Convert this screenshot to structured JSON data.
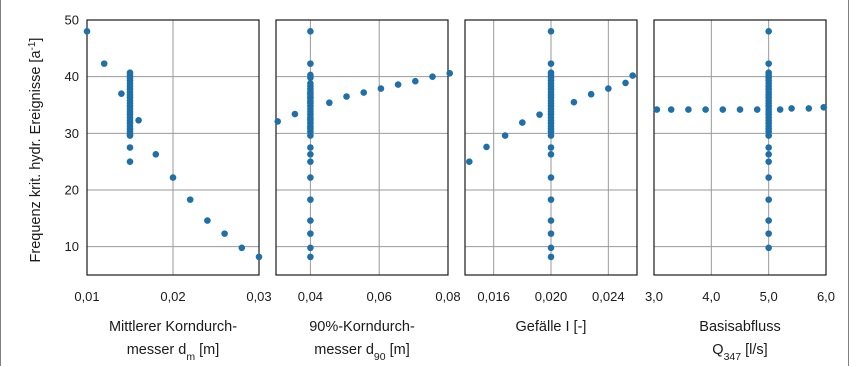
{
  "y_axis": {
    "label": "Frequenz krit. hydr. Ereignisse [a",
    "label_sup": "-1",
    "label_end": "]"
  },
  "chart_data": [
    {
      "type": "scatter",
      "xlabel_lines": [
        {
          "text": "Mittlerer Korndurch-"
        },
        {
          "text": "messer d",
          "sub": "m",
          "after": " [m]"
        }
      ],
      "xlim": [
        0.01,
        0.03
      ],
      "xticks": [
        0.01,
        0.02,
        0.03
      ],
      "xtick_labels": [
        "0,01",
        "0,02",
        "0,03"
      ],
      "ylim": [
        5,
        50
      ],
      "yticks": [
        10,
        20,
        30,
        40,
        50
      ],
      "ytick_labels": [
        "10",
        "20",
        "30",
        "40",
        "50"
      ],
      "grid": true,
      "color": "#1f6fa8",
      "x": [
        0.01,
        0.012,
        0.014,
        0.015,
        0.015,
        0.015,
        0.015,
        0.015,
        0.015,
        0.015,
        0.015,
        0.015,
        0.015,
        0.015,
        0.015,
        0.015,
        0.015,
        0.015,
        0.015,
        0.015,
        0.015,
        0.015,
        0.015,
        0.015,
        0.015,
        0.015,
        0.016,
        0.015,
        0.015,
        0.015,
        0.018,
        0.02,
        0.022,
        0.024,
        0.026,
        0.028,
        0.03
      ],
      "y": [
        48,
        42.3,
        37,
        40.7,
        40.3,
        39.8,
        39.3,
        38.8,
        38.3,
        37.8,
        37.3,
        36.8,
        36.3,
        35.8,
        35.3,
        34.8,
        34.3,
        33.8,
        33.3,
        32.8,
        32.3,
        31.8,
        31.3,
        30.8,
        30.3,
        29.8,
        32.3,
        29.6,
        27.5,
        25,
        26.3,
        22.2,
        18.3,
        14.6,
        12.3,
        9.8,
        8.2
      ]
    },
    {
      "type": "scatter",
      "xlabel_lines": [
        {
          "text": "90%-Korndurch-"
        },
        {
          "text": "messer d",
          "sub": "90",
          "after": " [m]"
        }
      ],
      "xlim": [
        0.03,
        0.08
      ],
      "xticks": [
        0.04,
        0.06,
        0.08
      ],
      "xtick_labels": [
        "0,04",
        "0,06",
        "0,08"
      ],
      "ylim": [
        5,
        50
      ],
      "yticks": [
        10,
        20,
        30,
        40,
        50
      ],
      "grid": true,
      "color": "#1f6fa8",
      "x": [
        0.04,
        0.04,
        0.04,
        0.04,
        0.04,
        0.04,
        0.04,
        0.04,
        0.04,
        0.04,
        0.04,
        0.04,
        0.04,
        0.04,
        0.04,
        0.04,
        0.04,
        0.04,
        0.04,
        0.04,
        0.04,
        0.04,
        0.04,
        0.04,
        0.04,
        0.04,
        0.04,
        0.04,
        0.04,
        0.04,
        0.04,
        0.04,
        0.04,
        0.04,
        0.04,
        0.04,
        0.04,
        0.0305,
        0.0355,
        0.0455,
        0.0505,
        0.0555,
        0.0605,
        0.0655,
        0.0705,
        0.0755,
        0.0805
      ],
      "y": [
        48,
        42.3,
        40.3,
        39.8,
        38.8,
        38.3,
        37.8,
        37.3,
        36.8,
        36.3,
        35.8,
        35.3,
        34.8,
        34.3,
        33.8,
        33.3,
        32.8,
        32.3,
        31.8,
        31.3,
        30.8,
        30.3,
        29.6,
        27.5,
        26.3,
        25,
        22.2,
        18.3,
        14.6,
        12.3,
        9.8,
        8.2,
        35.5,
        36.3,
        37,
        32.5,
        31,
        32.1,
        33.4,
        35.4,
        36.5,
        37.2,
        37.9,
        38.6,
        39.2,
        40,
        40.6
      ]
    },
    {
      "type": "scatter",
      "xlabel_lines": [
        {
          "text": "Gefälle I [-]"
        }
      ],
      "xlim": [
        0.014,
        0.026
      ],
      "xticks": [
        0.016,
        0.02,
        0.024
      ],
      "xtick_labels": [
        "0,016",
        "0,020",
        "0,024"
      ],
      "ylim": [
        5,
        50
      ],
      "yticks": [
        10,
        20,
        30,
        40,
        50
      ],
      "grid": true,
      "color": "#1f6fa8",
      "x": [
        0.02,
        0.02,
        0.02,
        0.02,
        0.02,
        0.02,
        0.02,
        0.02,
        0.02,
        0.02,
        0.02,
        0.02,
        0.02,
        0.02,
        0.02,
        0.02,
        0.02,
        0.02,
        0.02,
        0.02,
        0.02,
        0.02,
        0.02,
        0.02,
        0.02,
        0.02,
        0.02,
        0.02,
        0.02,
        0.02,
        0.02,
        0.02,
        0.02,
        0.0143,
        0.0155,
        0.0168,
        0.018,
        0.0192,
        0.0216,
        0.0228,
        0.024,
        0.0252
      ],
      "y": [
        48,
        42.3,
        40.7,
        40.3,
        39.8,
        39.3,
        38.8,
        38.3,
        37.8,
        37.3,
        36.8,
        36.3,
        35.8,
        35.3,
        34.8,
        34.3,
        33.8,
        33.3,
        32.8,
        32.3,
        31.8,
        31.3,
        30.8,
        30.3,
        29.6,
        27.5,
        26.3,
        22.2,
        18.3,
        14.6,
        12.3,
        9.8,
        8.2,
        25,
        27.6,
        29.6,
        31.9,
        33.3,
        35.5,
        36.9,
        37.9,
        38.9
      ],
      "x_extra": [
        0.0257
      ],
      "y_extra": [
        40.2
      ]
    },
    {
      "type": "scatter",
      "xlabel_lines": [
        {
          "text": "Basisabfluss"
        },
        {
          "text": "Q",
          "sub": "347",
          "after": " [l/s]"
        }
      ],
      "xlim": [
        3.0,
        6.0
      ],
      "xticks": [
        3.0,
        4.0,
        5.0,
        6.0
      ],
      "xtick_labels": [
        "3,0",
        "4,0",
        "5,0",
        "6,0"
      ],
      "ylim": [
        5,
        50
      ],
      "yticks": [
        10,
        20,
        30,
        40,
        50
      ],
      "grid": true,
      "color": "#1f6fa8",
      "x": [
        5.0,
        5.0,
        5.0,
        5.0,
        5.0,
        5.0,
        5.0,
        5.0,
        5.0,
        5.0,
        5.0,
        5.0,
        5.0,
        5.0,
        5.0,
        5.0,
        5.0,
        5.0,
        5.0,
        5.0,
        5.0,
        5.0,
        5.0,
        5.0,
        5.0,
        5.0,
        5.0,
        5.0,
        5.0,
        5.0,
        5.0,
        5.0,
        5.0,
        3.05,
        3.3,
        3.6,
        3.9,
        4.2,
        4.5,
        4.8,
        5.2,
        5.4,
        5.7,
        5.96
      ],
      "y": [
        48,
        42.3,
        40.7,
        40.3,
        39.8,
        39.3,
        38.8,
        38.3,
        37.8,
        37.3,
        36.8,
        36.3,
        35.8,
        35.3,
        34.8,
        34.3,
        33.8,
        33.3,
        32.8,
        32.3,
        31.8,
        31.3,
        30.8,
        30.3,
        29.6,
        27.5,
        26.3,
        25,
        22.2,
        18.3,
        14.6,
        12.3,
        9.8,
        34.2,
        34.2,
        34.2,
        34.2,
        34.2,
        34.2,
        34.2,
        34.2,
        34.4,
        34.4,
        34.6
      ]
    }
  ]
}
